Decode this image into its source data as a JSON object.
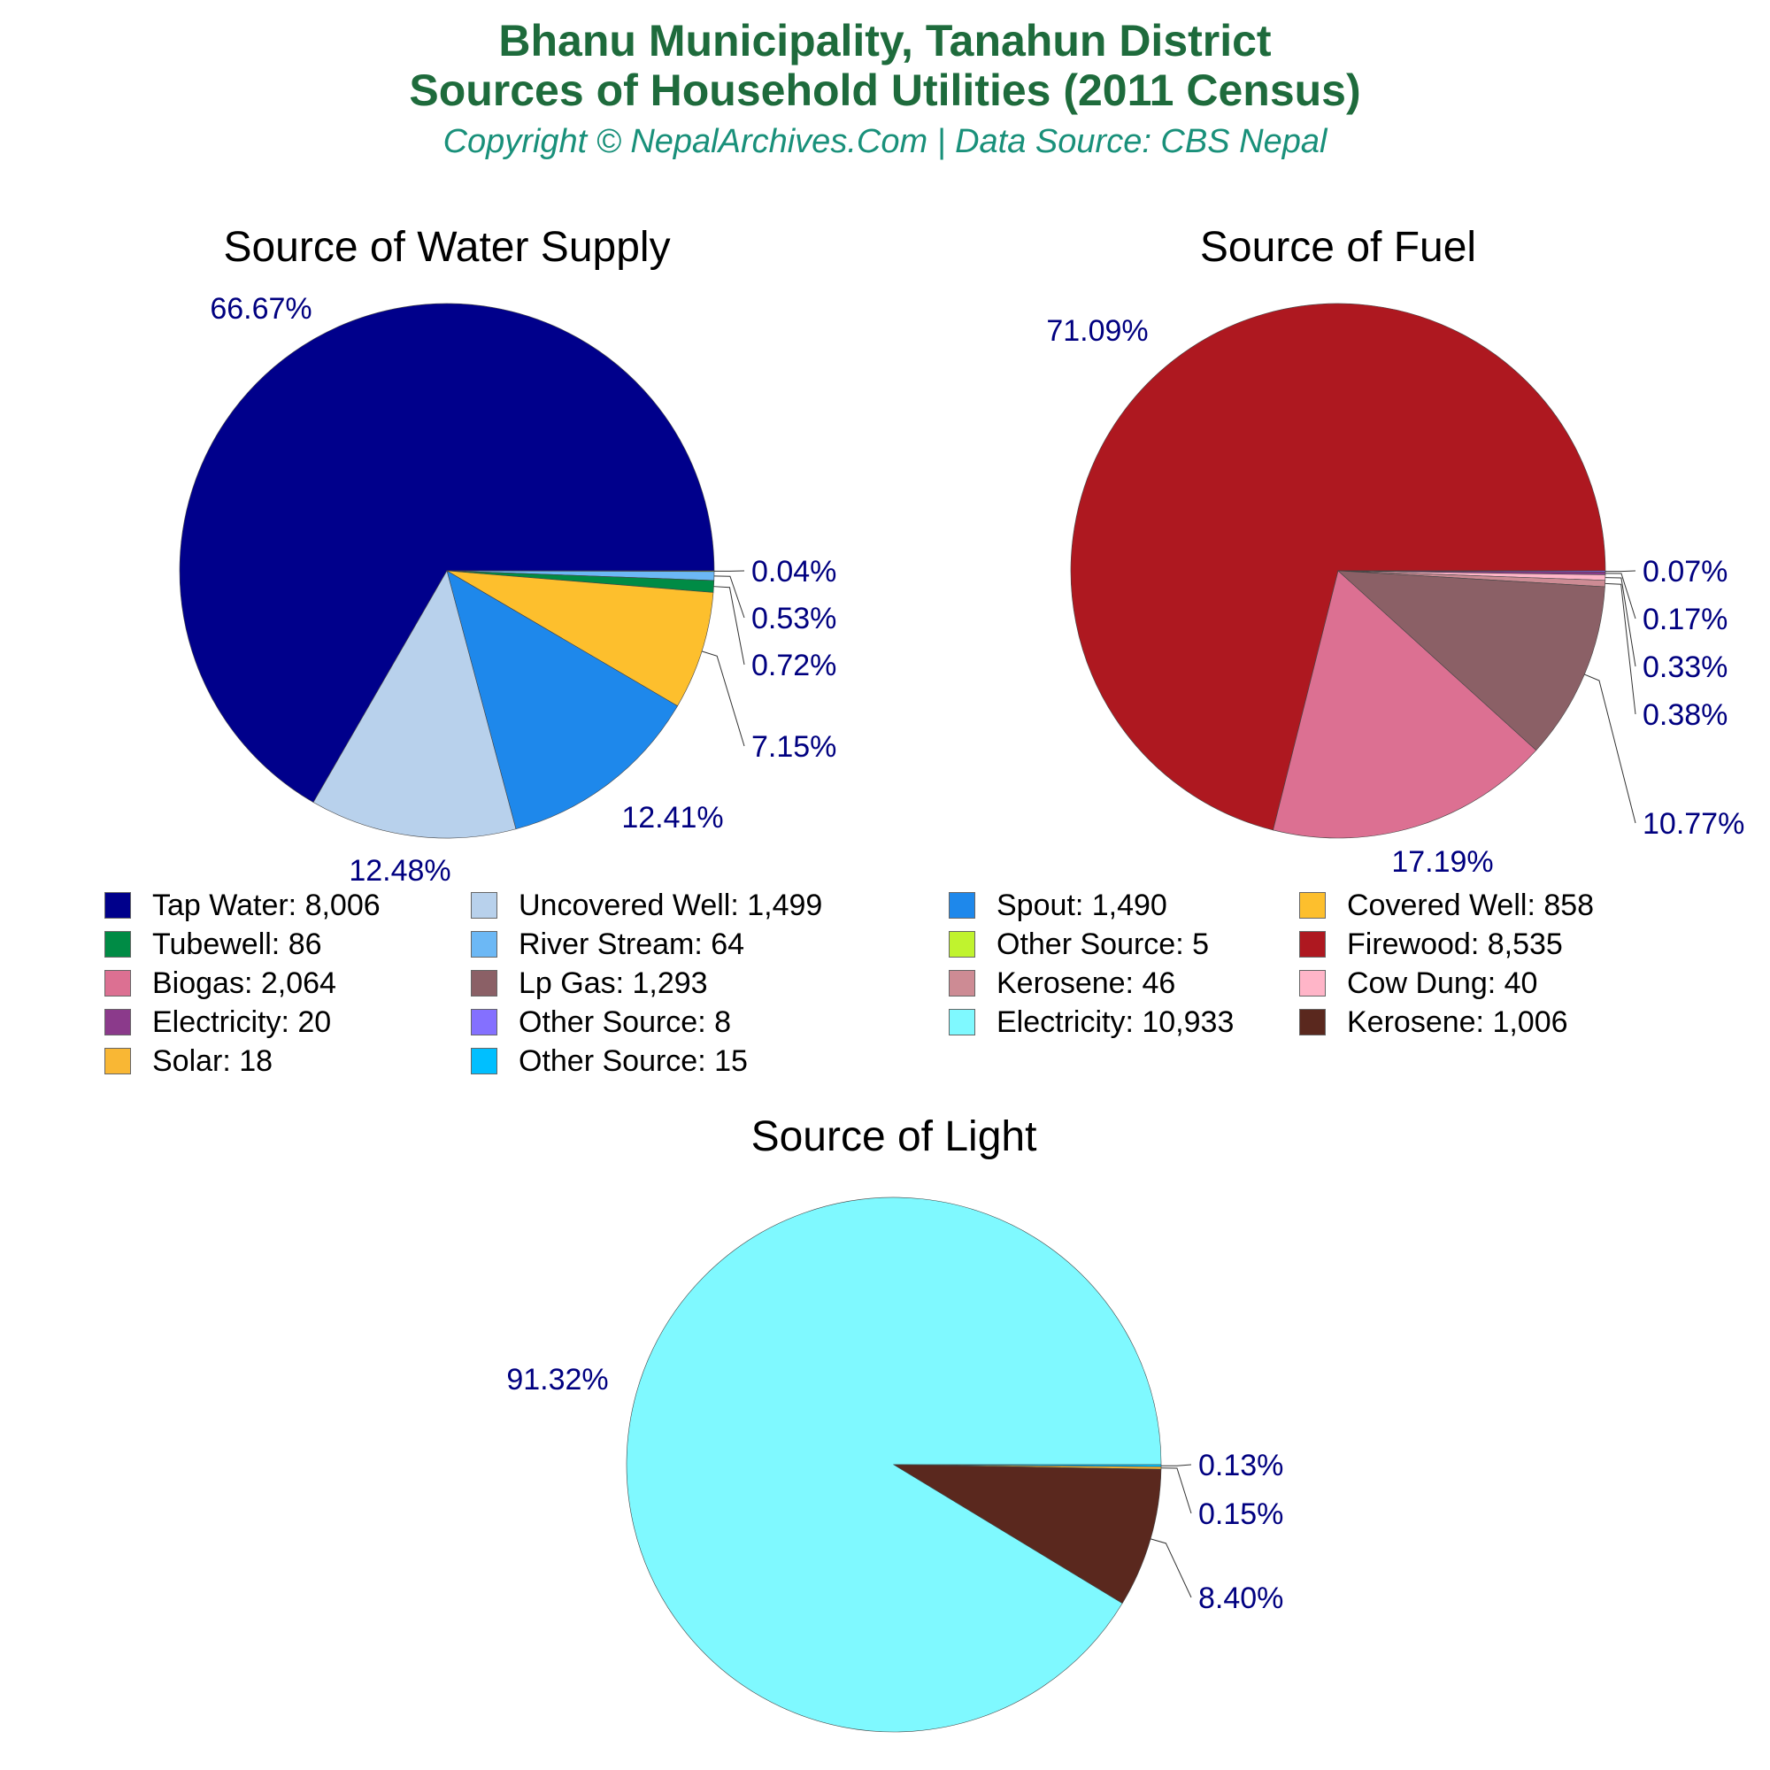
{
  "header": {
    "title_line1": "Bhanu Municipality, Tanahun District",
    "title_line2": "Sources of Household Utilities (2011 Census)",
    "subtitle": "Copyright © NepalArchives.Com | Data Source: CBS Nepal"
  },
  "chart_data": [
    {
      "type": "pie",
      "title": "Source of Water Supply",
      "slices": [
        {
          "label": "Tap Water",
          "value": 8006,
          "percent": "66.67%",
          "color": "#00008b"
        },
        {
          "label": "Uncovered Well",
          "value": 1499,
          "percent": "12.48%",
          "color": "#b8d1ec"
        },
        {
          "label": "Spout",
          "value": 1490,
          "percent": "12.41%",
          "color": "#1e88eb"
        },
        {
          "label": "Covered Well",
          "value": 858,
          "percent": "7.15%",
          "color": "#fdbf2d"
        },
        {
          "label": "Tubewell",
          "value": 86,
          "percent": "0.72%",
          "color": "#008b45"
        },
        {
          "label": "River Stream",
          "value": 64,
          "percent": "0.53%",
          "color": "#6cb8f5"
        },
        {
          "label": "Other Source",
          "value": 5,
          "percent": "0.04%",
          "color": "#c0f32e"
        }
      ]
    },
    {
      "type": "pie",
      "title": "Source of Fuel",
      "slices": [
        {
          "label": "Firewood",
          "value": 8535,
          "percent": "71.09%",
          "color": "#ae1820"
        },
        {
          "label": "Biogas",
          "value": 2064,
          "percent": "17.19%",
          "color": "#dc7092"
        },
        {
          "label": "Lp Gas",
          "value": 1293,
          "percent": "10.77%",
          "color": "#8b6066"
        },
        {
          "label": "Kerosene",
          "value": 46,
          "percent": "0.38%",
          "color": "#cd8b94"
        },
        {
          "label": "Cow Dung",
          "value": 40,
          "percent": "0.33%",
          "color": "#ffb5c8"
        },
        {
          "label": "Electricity",
          "value": 20,
          "percent": "0.17%",
          "color": "#8b3a8b"
        },
        {
          "label": "Other Source",
          "value": 8,
          "percent": "0.07%",
          "color": "#8470ff"
        }
      ]
    },
    {
      "type": "pie",
      "title": "Source of Light",
      "slices": [
        {
          "label": "Electricity",
          "value": 10933,
          "percent": "91.32%",
          "color": "#7ff9ff"
        },
        {
          "label": "Kerosene",
          "value": 1006,
          "percent": "8.40%",
          "color": "#5a281e"
        },
        {
          "label": "Solar",
          "value": 18,
          "percent": "0.15%",
          "color": "#f9b734"
        },
        {
          "label": "Other Source",
          "value": 15,
          "percent": "0.13%",
          "color": "#00bfff"
        }
      ]
    }
  ],
  "legend": [
    {
      "text": "Tap Water: 8,006",
      "color": "#00008b"
    },
    {
      "text": "Uncovered Well: 1,499",
      "color": "#b8d1ec"
    },
    {
      "text": "Spout: 1,490",
      "color": "#1e88eb"
    },
    {
      "text": "Covered Well: 858",
      "color": "#fdbf2d"
    },
    {
      "text": "Tubewell: 86",
      "color": "#008b45"
    },
    {
      "text": "River Stream: 64",
      "color": "#6cb8f5"
    },
    {
      "text": "Other Source: 5",
      "color": "#c0f32e"
    },
    {
      "text": "Firewood: 8,535",
      "color": "#ae1820"
    },
    {
      "text": "Biogas: 2,064",
      "color": "#dc7092"
    },
    {
      "text": "Lp Gas: 1,293",
      "color": "#8b6066"
    },
    {
      "text": "Kerosene: 46",
      "color": "#cd8b94"
    },
    {
      "text": "Cow Dung: 40",
      "color": "#ffb5c8"
    },
    {
      "text": "Electricity: 20",
      "color": "#8b3a8b"
    },
    {
      "text": "Other Source: 8",
      "color": "#8470ff"
    },
    {
      "text": "Electricity: 10,933",
      "color": "#7ff9ff"
    },
    {
      "text": "Kerosene: 1,006",
      "color": "#5a281e"
    },
    {
      "text": "Solar: 18",
      "color": "#f9b734"
    },
    {
      "text": "Other Source: 15",
      "color": "#00bfff"
    }
  ]
}
